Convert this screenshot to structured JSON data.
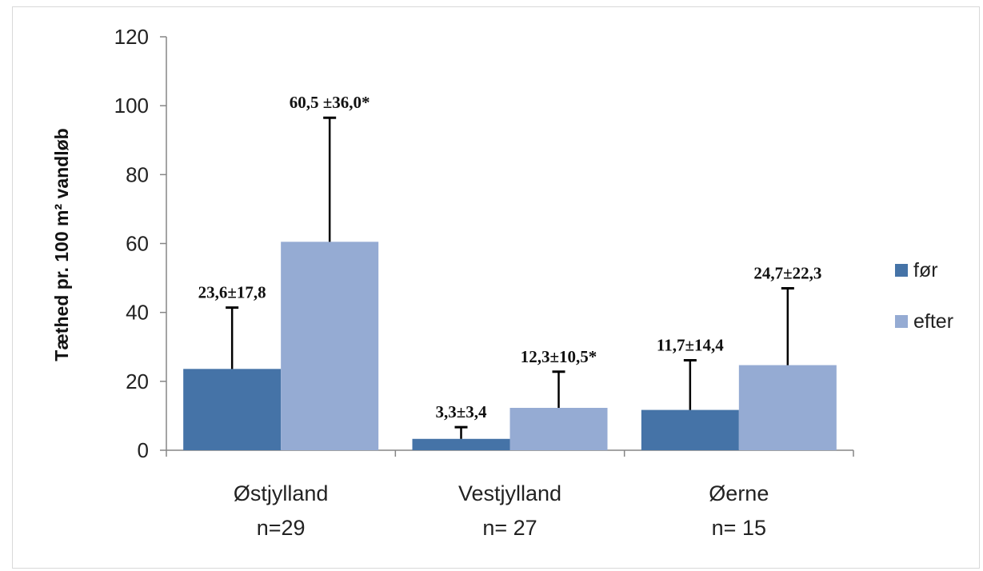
{
  "chart_data": {
    "type": "bar",
    "title": "",
    "ylabel": "Tæthed pr. 100 m² vandløb",
    "xlabel": "",
    "ylim": [
      0,
      120
    ],
    "yticks": [
      0,
      20,
      40,
      60,
      80,
      100,
      120
    ],
    "grid": false,
    "legend_position": "right",
    "categories": [
      {
        "name": "Østjylland",
        "n": "n=29"
      },
      {
        "name": "Vestjylland",
        "n": "n= 27"
      },
      {
        "name": "Øerne",
        "n": "n= 15"
      }
    ],
    "series": [
      {
        "name": "før",
        "color": "#4573a7",
        "values": [
          23.6,
          3.3,
          11.7
        ],
        "errors": [
          17.8,
          3.4,
          14.4
        ],
        "labels": [
          "23,6±17,8",
          "3,3±3,4",
          "11,7±14,4"
        ]
      },
      {
        "name": "efter",
        "color": "#95abd3",
        "values": [
          60.5,
          12.3,
          24.7
        ],
        "errors": [
          36.0,
          10.5,
          22.3
        ],
        "labels": [
          "60,5 ±36,0*",
          "12,3±10,5*",
          "24,7±22,3"
        ]
      }
    ]
  }
}
